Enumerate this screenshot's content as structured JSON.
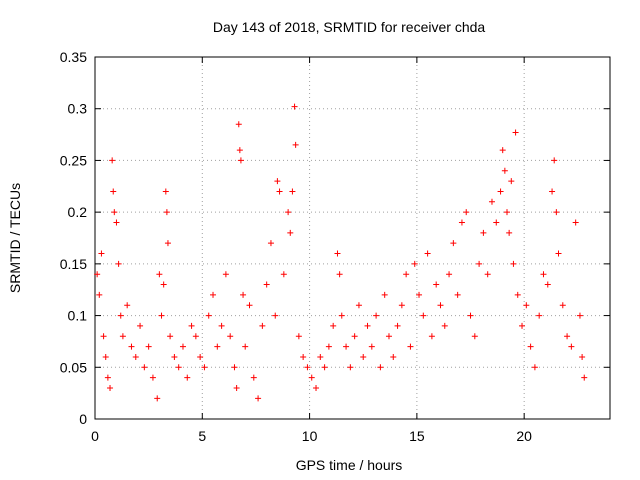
{
  "chart_data": {
    "type": "scatter",
    "title": "Day 143 of 2018, SRMTID for receiver chda",
    "xlabel": "GPS time / hours",
    "ylabel": "SRMTID / TECUs",
    "xlim": [
      0,
      24
    ],
    "ylim": [
      0,
      0.35
    ],
    "xticks": [
      0,
      5,
      10,
      15,
      20
    ],
    "xtick_labels": [
      "0",
      "5",
      "10",
      "15",
      "20"
    ],
    "yticks": [
      0,
      0.05,
      0.1,
      0.15,
      0.2,
      0.25,
      0.3,
      0.35
    ],
    "ytick_labels": [
      "0",
      "0.05",
      "0.1",
      "0.15",
      "0.2",
      "0.25",
      "0.3",
      "0.35"
    ],
    "grid": true,
    "marker": "+",
    "color": "#ff0000",
    "series": [
      {
        "name": "SRMTID",
        "points": [
          [
            0.1,
            0.14
          ],
          [
            0.2,
            0.12
          ],
          [
            0.3,
            0.16
          ],
          [
            0.4,
            0.08
          ],
          [
            0.5,
            0.06
          ],
          [
            0.6,
            0.04
          ],
          [
            0.7,
            0.03
          ],
          [
            0.8,
            0.25
          ],
          [
            0.85,
            0.22
          ],
          [
            0.9,
            0.2
          ],
          [
            1.0,
            0.19
          ],
          [
            1.1,
            0.15
          ],
          [
            1.2,
            0.1
          ],
          [
            1.3,
            0.08
          ],
          [
            1.5,
            0.11
          ],
          [
            1.7,
            0.07
          ],
          [
            1.9,
            0.06
          ],
          [
            2.1,
            0.09
          ],
          [
            2.3,
            0.05
          ],
          [
            2.5,
            0.07
          ],
          [
            2.7,
            0.04
          ],
          [
            2.9,
            0.02
          ],
          [
            3.0,
            0.14
          ],
          [
            3.1,
            0.1
          ],
          [
            3.2,
            0.13
          ],
          [
            3.3,
            0.22
          ],
          [
            3.35,
            0.2
          ],
          [
            3.4,
            0.17
          ],
          [
            3.5,
            0.08
          ],
          [
            3.7,
            0.06
          ],
          [
            3.9,
            0.05
          ],
          [
            4.1,
            0.07
          ],
          [
            4.3,
            0.04
          ],
          [
            4.5,
            0.09
          ],
          [
            4.7,
            0.08
          ],
          [
            4.9,
            0.06
          ],
          [
            5.1,
            0.05
          ],
          [
            5.3,
            0.1
          ],
          [
            5.5,
            0.12
          ],
          [
            5.7,
            0.07
          ],
          [
            5.9,
            0.09
          ],
          [
            6.1,
            0.14
          ],
          [
            6.3,
            0.08
          ],
          [
            6.5,
            0.05
          ],
          [
            6.6,
            0.03
          ],
          [
            6.7,
            0.285
          ],
          [
            6.75,
            0.26
          ],
          [
            6.8,
            0.25
          ],
          [
            6.9,
            0.12
          ],
          [
            7.0,
            0.07
          ],
          [
            7.2,
            0.11
          ],
          [
            7.4,
            0.04
          ],
          [
            7.6,
            0.02
          ],
          [
            7.8,
            0.09
          ],
          [
            8.0,
            0.13
          ],
          [
            8.2,
            0.17
          ],
          [
            8.4,
            0.1
          ],
          [
            8.5,
            0.23
          ],
          [
            8.6,
            0.22
          ],
          [
            8.8,
            0.14
          ],
          [
            9.0,
            0.2
          ],
          [
            9.1,
            0.18
          ],
          [
            9.2,
            0.22
          ],
          [
            9.3,
            0.302
          ],
          [
            9.35,
            0.265
          ],
          [
            9.5,
            0.08
          ],
          [
            9.7,
            0.06
          ],
          [
            9.9,
            0.05
          ],
          [
            10.1,
            0.04
          ],
          [
            10.3,
            0.03
          ],
          [
            10.5,
            0.06
          ],
          [
            10.7,
            0.05
          ],
          [
            10.9,
            0.07
          ],
          [
            11.1,
            0.09
          ],
          [
            11.3,
            0.16
          ],
          [
            11.4,
            0.14
          ],
          [
            11.5,
            0.1
          ],
          [
            11.7,
            0.07
          ],
          [
            11.9,
            0.05
          ],
          [
            12.1,
            0.08
          ],
          [
            12.3,
            0.11
          ],
          [
            12.5,
            0.06
          ],
          [
            12.7,
            0.09
          ],
          [
            12.9,
            0.07
          ],
          [
            13.1,
            0.1
          ],
          [
            13.3,
            0.05
          ],
          [
            13.5,
            0.12
          ],
          [
            13.7,
            0.08
          ],
          [
            13.9,
            0.06
          ],
          [
            14.1,
            0.09
          ],
          [
            14.3,
            0.11
          ],
          [
            14.5,
            0.14
          ],
          [
            14.7,
            0.07
          ],
          [
            14.9,
            0.15
          ],
          [
            15.1,
            0.12
          ],
          [
            15.3,
            0.1
          ],
          [
            15.5,
            0.16
          ],
          [
            15.7,
            0.08
          ],
          [
            15.9,
            0.13
          ],
          [
            16.1,
            0.11
          ],
          [
            16.3,
            0.09
          ],
          [
            16.5,
            0.14
          ],
          [
            16.7,
            0.17
          ],
          [
            16.9,
            0.12
          ],
          [
            17.1,
            0.19
          ],
          [
            17.3,
            0.2
          ],
          [
            17.5,
            0.1
          ],
          [
            17.7,
            0.08
          ],
          [
            17.9,
            0.15
          ],
          [
            18.1,
            0.18
          ],
          [
            18.3,
            0.14
          ],
          [
            18.5,
            0.21
          ],
          [
            18.7,
            0.19
          ],
          [
            18.9,
            0.22
          ],
          [
            19.0,
            0.26
          ],
          [
            19.1,
            0.24
          ],
          [
            19.2,
            0.2
          ],
          [
            19.3,
            0.18
          ],
          [
            19.4,
            0.23
          ],
          [
            19.5,
            0.15
          ],
          [
            19.6,
            0.277
          ],
          [
            19.7,
            0.12
          ],
          [
            19.9,
            0.09
          ],
          [
            20.1,
            0.11
          ],
          [
            20.3,
            0.07
          ],
          [
            20.5,
            0.05
          ],
          [
            20.7,
            0.1
          ],
          [
            20.9,
            0.14
          ],
          [
            21.1,
            0.13
          ],
          [
            21.3,
            0.22
          ],
          [
            21.4,
            0.25
          ],
          [
            21.5,
            0.2
          ],
          [
            21.6,
            0.16
          ],
          [
            21.8,
            0.11
          ],
          [
            22.0,
            0.08
          ],
          [
            22.2,
            0.07
          ],
          [
            22.4,
            0.19
          ],
          [
            22.6,
            0.1
          ],
          [
            22.7,
            0.06
          ],
          [
            22.8,
            0.04
          ]
        ]
      }
    ]
  }
}
